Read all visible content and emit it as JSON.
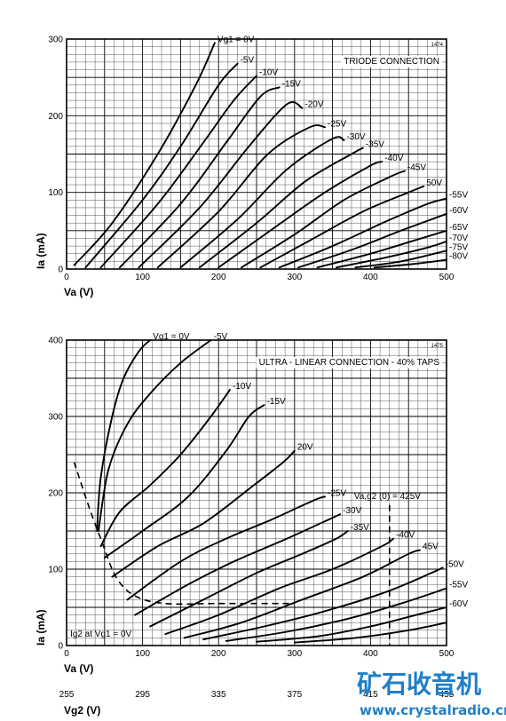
{
  "chart_data": [
    {
      "type": "line",
      "title": "TRIODE CONNECTION",
      "ref": "1474",
      "xlabel": "Va (V)",
      "ylabel": "Ia (mA)",
      "xlim": [
        0,
        500
      ],
      "ylim": [
        0,
        300
      ],
      "xticks": [
        "0",
        "100",
        "200",
        "300",
        "400",
        "500"
      ],
      "yticks": [
        "0",
        "100",
        "200",
        "300"
      ],
      "grid": true,
      "series": [
        {
          "name": "Vg1 = 0V",
          "points": [
            [
              10,
              5
            ],
            [
              60,
              60
            ],
            [
              120,
              150
            ],
            [
              170,
              240
            ],
            [
              195,
              295
            ]
          ]
        },
        {
          "name": "-5V",
          "points": [
            [
              25,
              2
            ],
            [
              100,
              90
            ],
            [
              150,
              160
            ],
            [
              200,
              240
            ],
            [
              225,
              268
            ]
          ]
        },
        {
          "name": "-10V",
          "points": [
            [
              45,
              2
            ],
            [
              120,
              85
            ],
            [
              180,
              165
            ],
            [
              220,
              220
            ],
            [
              250,
              252
            ]
          ]
        },
        {
          "name": "-15V",
          "points": [
            [
              70,
              2
            ],
            [
              150,
              85
            ],
            [
              210,
              165
            ],
            [
              255,
              225
            ],
            [
              280,
              237
            ]
          ]
        },
        {
          "name": "-20V",
          "points": [
            [
              95,
              2
            ],
            [
              175,
              80
            ],
            [
              240,
              160
            ],
            [
              290,
              215
            ],
            [
              310,
              210
            ]
          ]
        },
        {
          "name": "-25V",
          "points": [
            [
              120,
              2
            ],
            [
              200,
              75
            ],
            [
              265,
              150
            ],
            [
              320,
              185
            ],
            [
              340,
              185
            ]
          ]
        },
        {
          "name": "-30V",
          "points": [
            [
              150,
              2
            ],
            [
              225,
              65
            ],
            [
              290,
              130
            ],
            [
              350,
              170
            ],
            [
              365,
              168
            ]
          ]
        },
        {
          "name": "-35V",
          "points": [
            [
              175,
              2
            ],
            [
              250,
              60
            ],
            [
              315,
              115
            ],
            [
              375,
              150
            ],
            [
              390,
              158
            ]
          ]
        },
        {
          "name": "-40V",
          "points": [
            [
              200,
              2
            ],
            [
              275,
              55
            ],
            [
              340,
              100
            ],
            [
              400,
              135
            ],
            [
              415,
              140
            ]
          ]
        },
        {
          "name": "-45V",
          "points": [
            [
              230,
              2
            ],
            [
              300,
              45
            ],
            [
              365,
              90
            ],
            [
              425,
              120
            ],
            [
              445,
              128
            ]
          ]
        },
        {
          "name": "50V",
          "points": [
            [
              255,
              2
            ],
            [
              325,
              40
            ],
            [
              390,
              75
            ],
            [
              450,
              100
            ],
            [
              470,
              108
            ]
          ]
        },
        {
          "name": "-55V",
          "points": [
            [
              280,
              2
            ],
            [
              350,
              30
            ],
            [
              420,
              62
            ],
            [
              475,
              85
            ],
            [
              500,
              92
            ]
          ]
        },
        {
          "name": "-60V",
          "points": [
            [
              305,
              2
            ],
            [
              375,
              25
            ],
            [
              440,
              50
            ],
            [
              500,
              72
            ]
          ]
        },
        {
          "name": "-65V",
          "points": [
            [
              330,
              2
            ],
            [
              400,
              20
            ],
            [
              460,
              38
            ],
            [
              500,
              50
            ]
          ]
        },
        {
          "name": "-70V",
          "points": [
            [
              355,
              2
            ],
            [
              420,
              15
            ],
            [
              475,
              28
            ],
            [
              500,
              36
            ]
          ]
        },
        {
          "name": "-75V",
          "points": [
            [
              380,
              2
            ],
            [
              440,
              10
            ],
            [
              500,
              24
            ]
          ]
        },
        {
          "name": "-80V",
          "points": [
            [
              405,
              2
            ],
            [
              460,
              7
            ],
            [
              500,
              12
            ]
          ]
        }
      ]
    },
    {
      "type": "line",
      "title": "ULTRA - LINEAR CONNECTION - 40% TAPS",
      "ref": "1475",
      "xlabel": "Va (V)",
      "x2label": "Vg2 (V)",
      "ylabel": "Ia (mA)",
      "xlim": [
        0,
        500
      ],
      "ylim": [
        0,
        400
      ],
      "xticks": [
        "0",
        "100",
        "200",
        "300",
        "400",
        "500"
      ],
      "x2ticks": [
        "255",
        "295",
        "335",
        "375",
        "415",
        "455"
      ],
      "yticks": [
        "0",
        "100",
        "200",
        "300",
        "400"
      ],
      "grid": true,
      "annotation_vline": {
        "label": "Va,g2 (0) = 425V",
        "x": 425
      },
      "annotation_dashed": "Ig2 at Vg1 = 0V",
      "dashed_curve": [
        [
          10,
          240
        ],
        [
          30,
          180
        ],
        [
          45,
          140
        ],
        [
          65,
          90
        ],
        [
          90,
          65
        ],
        [
          130,
          55
        ],
        [
          200,
          55
        ],
        [
          300,
          55
        ]
      ],
      "series": [
        {
          "name": "Vg1 = 0V",
          "points": [
            [
              40,
              150
            ],
            [
              45,
              220
            ],
            [
              60,
              300
            ],
            [
              75,
              350
            ],
            [
              95,
              385
            ],
            [
              110,
              400
            ]
          ]
        },
        {
          "name": "-5V",
          "points": [
            [
              42,
              150
            ],
            [
              55,
              230
            ],
            [
              80,
              290
            ],
            [
              110,
              330
            ],
            [
              150,
              370
            ],
            [
              190,
              400
            ]
          ]
        },
        {
          "name": "-10V",
          "points": [
            [
              45,
              130
            ],
            [
              70,
              175
            ],
            [
              110,
              210
            ],
            [
              150,
              250
            ],
            [
              190,
              300
            ],
            [
              215,
              335
            ]
          ]
        },
        {
          "name": "-15V",
          "points": [
            [
              50,
              115
            ],
            [
              100,
              150
            ],
            [
              160,
              195
            ],
            [
              210,
              255
            ],
            [
              240,
              300
            ],
            [
              260,
              315
            ]
          ]
        },
        {
          "name": "20V",
          "points": [
            [
              60,
              90
            ],
            [
              120,
              130
            ],
            [
              180,
              160
            ],
            [
              240,
              205
            ],
            [
              285,
              240
            ],
            [
              300,
              255
            ]
          ]
        },
        {
          "name": "-25V",
          "points": [
            [
              80,
              60
            ],
            [
              150,
              110
            ],
            [
              210,
              140
            ],
            [
              270,
              165
            ],
            [
              325,
              190
            ],
            [
              340,
              195
            ]
          ]
        },
        {
          "name": "-30V",
          "points": [
            [
              90,
              40
            ],
            [
              160,
              80
            ],
            [
              220,
              110
            ],
            [
              290,
              140
            ],
            [
              345,
              165
            ],
            [
              360,
              172
            ]
          ]
        },
        {
          "name": "-35V",
          "points": [
            [
              110,
              25
            ],
            [
              180,
              60
            ],
            [
              250,
              95
            ],
            [
              310,
              120
            ],
            [
              355,
              140
            ],
            [
              370,
              150
            ]
          ]
        },
        {
          "name": "-40V",
          "points": [
            [
              130,
              15
            ],
            [
              200,
              40
            ],
            [
              280,
              75
            ],
            [
              350,
              100
            ],
            [
              415,
              130
            ],
            [
              430,
              140
            ]
          ]
        },
        {
          "name": "45V",
          "points": [
            [
              155,
              10
            ],
            [
              230,
              30
            ],
            [
              310,
              60
            ],
            [
              390,
              90
            ],
            [
              450,
              120
            ],
            [
              465,
              125
            ]
          ]
        },
        {
          "name": "-50V",
          "points": [
            [
              180,
              8
            ],
            [
              260,
              25
            ],
            [
              340,
              45
            ],
            [
              420,
              70
            ],
            [
              480,
              95
            ],
            [
              495,
              102
            ]
          ]
        },
        {
          "name": "-55V",
          "points": [
            [
              210,
              6
            ],
            [
              290,
              18
            ],
            [
              370,
              35
            ],
            [
              440,
              55
            ],
            [
              500,
              75
            ]
          ]
        },
        {
          "name": "-60V",
          "points": [
            [
              250,
              5
            ],
            [
              330,
              12
            ],
            [
              400,
              25
            ],
            [
              460,
              40
            ],
            [
              500,
              50
            ]
          ]
        },
        {
          "name": "",
          "points": [
            [
              300,
              4
            ],
            [
              380,
              10
            ],
            [
              450,
              20
            ],
            [
              500,
              30
            ]
          ]
        }
      ]
    }
  ],
  "watermark": {
    "title": "矿石收音机",
    "url": "www.crystalradio.cn"
  }
}
